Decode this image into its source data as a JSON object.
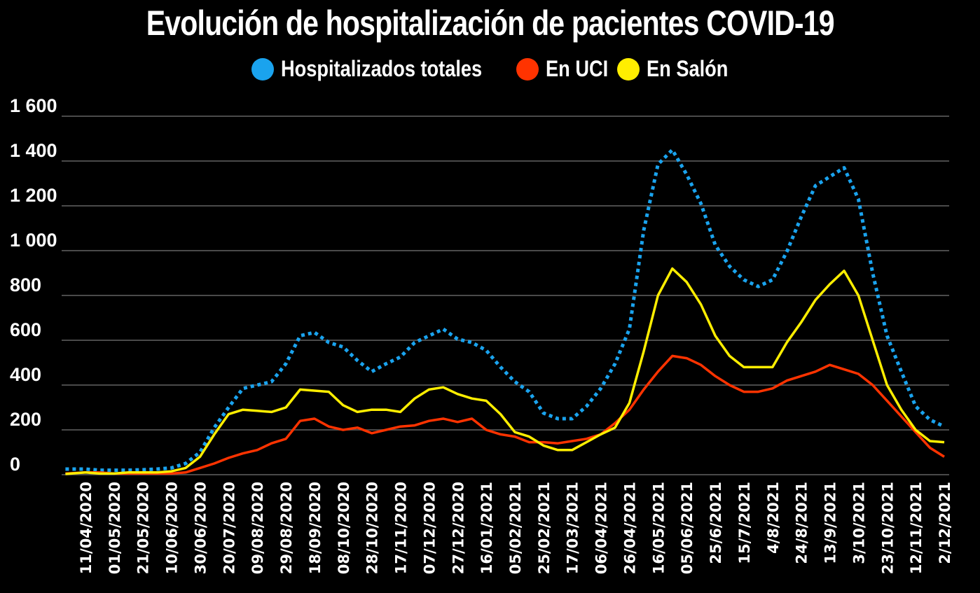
{
  "chart_data": {
    "type": "line",
    "title": "Evolución de hospitalización de pacientes COVID-19",
    "xlabel": "",
    "ylabel": "",
    "ylim": [
      0,
      1600
    ],
    "y_ticks": [
      "0",
      "200",
      "400",
      "600",
      "800",
      "1 000",
      "1 200",
      "1 400",
      "1 600"
    ],
    "y_tick_values": [
      0,
      200,
      400,
      600,
      800,
      1000,
      1200,
      1400,
      1600
    ],
    "grid": true,
    "legend_position": "top-center",
    "x_ticks": [
      "11/04/2020",
      "01/05/2020",
      "21/05/2020",
      "10/06/2020",
      "30/06/2020",
      "20/07/2020",
      "09/08/2020",
      "29/08/2020",
      "18/09/2020",
      "08/10/2020",
      "28/10/2020",
      "17/11/2020",
      "07/12/2020",
      "27/12/2020",
      "16/01/2021",
      "05/02/2021",
      "25/02/2021",
      "17/03/2021",
      "06/04/2021",
      "26/04/2021",
      "16/05/2021",
      "05/06/2021",
      "25/6/2021",
      "15/7/2021",
      "4/8/2021",
      "24/8/2021",
      "13/9/2021",
      "3/10/2021",
      "23/10/2021",
      "12/11/2021",
      "2/12/2021"
    ],
    "x": [
      "2020-03-28",
      "2020-04-11",
      "2020-04-21",
      "2020-05-01",
      "2020-05-11",
      "2020-05-21",
      "2020-05-31",
      "2020-06-10",
      "2020-06-20",
      "2020-06-30",
      "2020-07-10",
      "2020-07-20",
      "2020-07-30",
      "2020-08-09",
      "2020-08-19",
      "2020-08-29",
      "2020-09-08",
      "2020-09-18",
      "2020-09-28",
      "2020-10-08",
      "2020-10-18",
      "2020-10-28",
      "2020-11-07",
      "2020-11-17",
      "2020-11-27",
      "2020-12-07",
      "2020-12-17",
      "2020-12-27",
      "2021-01-06",
      "2021-01-16",
      "2021-01-26",
      "2021-02-05",
      "2021-02-15",
      "2021-02-25",
      "2021-03-07",
      "2021-03-17",
      "2021-03-27",
      "2021-04-06",
      "2021-04-16",
      "2021-04-26",
      "2021-05-06",
      "2021-05-16",
      "2021-05-26",
      "2021-06-05",
      "2021-06-15",
      "2021-06-25",
      "2021-07-05",
      "2021-07-15",
      "2021-07-25",
      "2021-08-04",
      "2021-08-14",
      "2021-08-24",
      "2021-09-03",
      "2021-09-13",
      "2021-09-23",
      "2021-10-03",
      "2021-10-13",
      "2021-10-23",
      "2021-11-02",
      "2021-11-12",
      "2021-11-22",
      "2021-12-02"
    ],
    "series": [
      {
        "name": "Hospitalizados totales",
        "color": "#1aa3ee",
        "style": "dotted",
        "values": [
          25,
          25,
          20,
          20,
          20,
          22,
          25,
          30,
          50,
          100,
          210,
          300,
          385,
          400,
          415,
          495,
          620,
          635,
          590,
          570,
          510,
          460,
          495,
          525,
          590,
          620,
          650,
          605,
          590,
          555,
          480,
          415,
          370,
          275,
          250,
          250,
          305,
          385,
          495,
          650,
          1090,
          1385,
          1450,
          1340,
          1210,
          1025,
          930,
          870,
          840,
          870,
          995,
          1150,
          1290,
          1330,
          1370,
          1230,
          900,
          620,
          460,
          305,
          245,
          215
        ]
      },
      {
        "name": "En UCI",
        "color": "#ff3300",
        "style": "solid",
        "values": [
          5,
          10,
          10,
          5,
          5,
          5,
          5,
          5,
          10,
          30,
          50,
          75,
          95,
          110,
          140,
          160,
          240,
          250,
          215,
          200,
          210,
          185,
          200,
          215,
          220,
          240,
          250,
          235,
          250,
          200,
          180,
          170,
          145,
          145,
          140,
          150,
          160,
          180,
          230,
          290,
          380,
          460,
          530,
          520,
          490,
          440,
          400,
          370,
          370,
          385,
          420,
          440,
          460,
          490,
          470,
          450,
          400,
          330,
          260,
          190,
          120,
          80
        ]
      },
      {
        "name": "En Salón",
        "color": "#ffee00",
        "style": "solid",
        "values": [
          3,
          10,
          5,
          5,
          10,
          10,
          10,
          15,
          30,
          80,
          180,
          270,
          290,
          285,
          280,
          300,
          380,
          375,
          370,
          310,
          280,
          290,
          290,
          280,
          340,
          380,
          390,
          360,
          340,
          330,
          270,
          190,
          170,
          130,
          110,
          110,
          145,
          180,
          210,
          320,
          550,
          800,
          920,
          860,
          760,
          620,
          530,
          480,
          480,
          480,
          590,
          680,
          780,
          850,
          910,
          800,
          600,
          400,
          290,
          200,
          150,
          145
        ]
      }
    ]
  }
}
